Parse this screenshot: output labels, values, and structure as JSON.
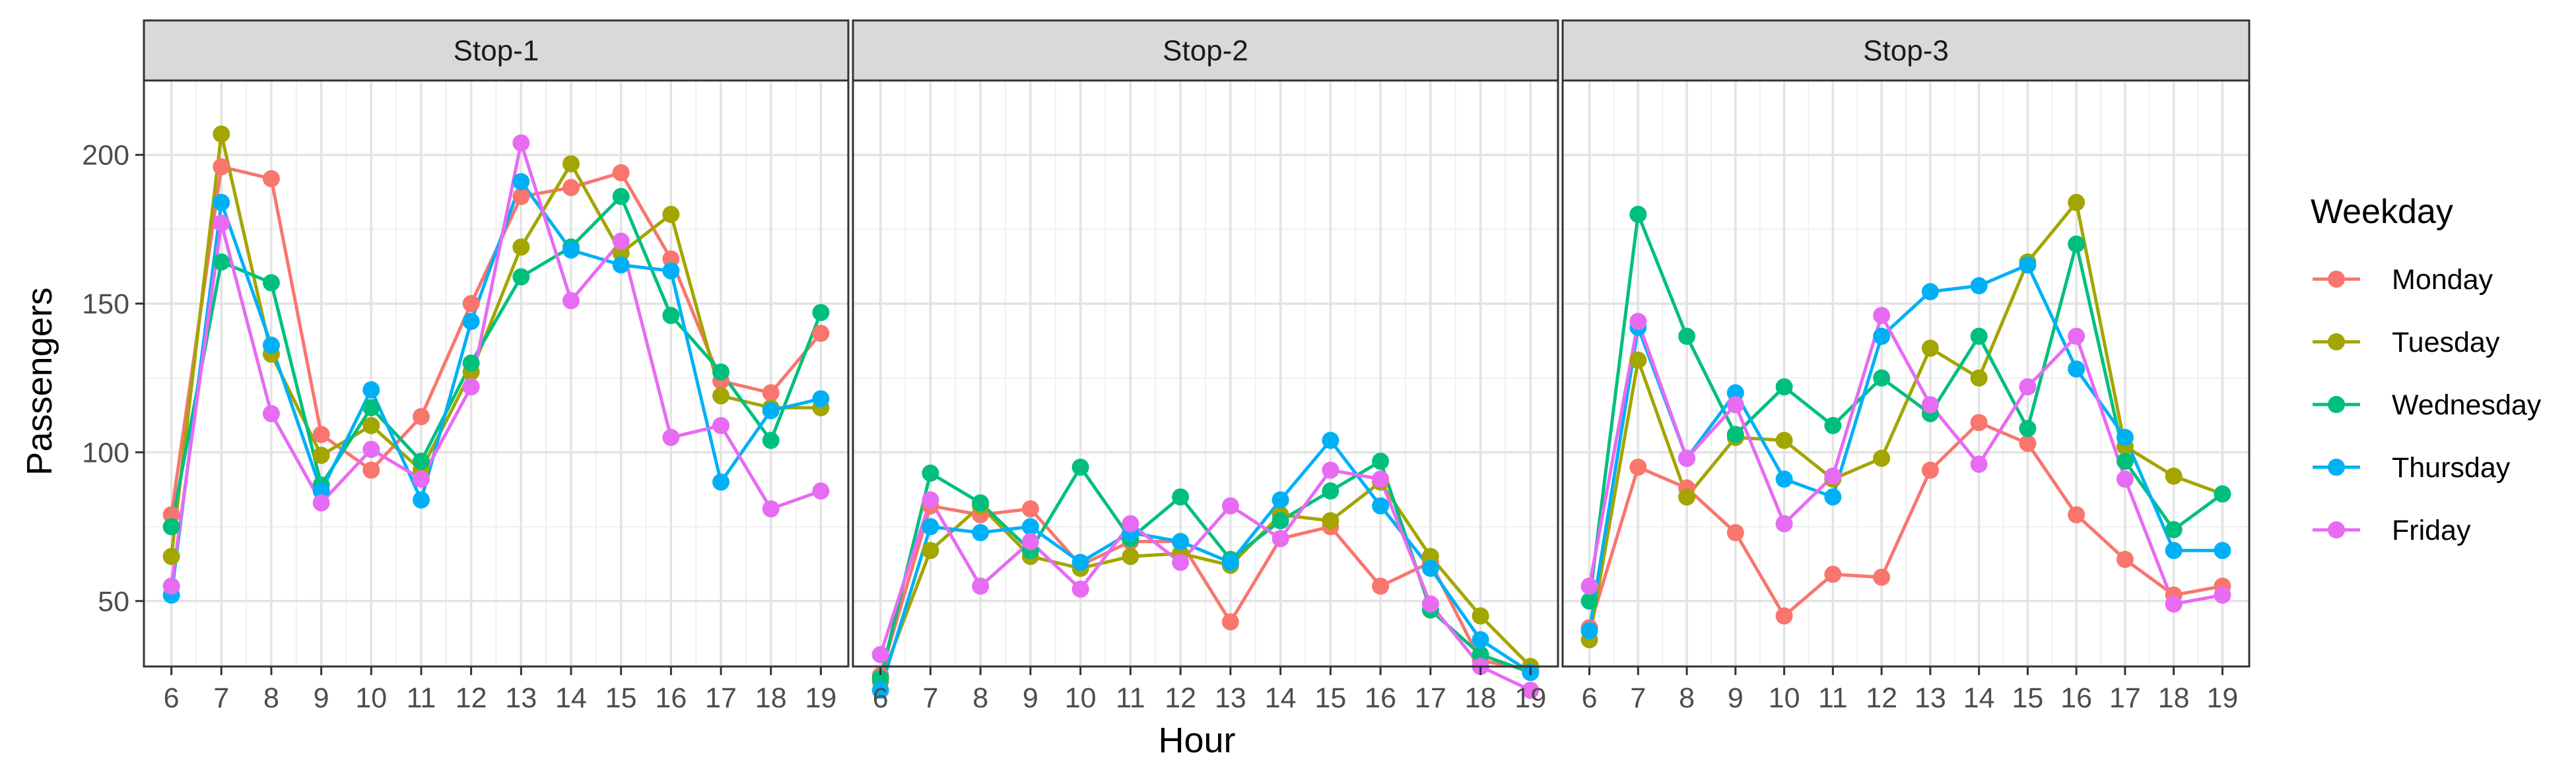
{
  "chart_data": {
    "type": "line",
    "facets": [
      "Stop-1",
      "Stop-2",
      "Stop-3"
    ],
    "xlabel": "Hour",
    "ylabel": "Passengers",
    "x": [
      6,
      7,
      8,
      9,
      10,
      11,
      12,
      13,
      14,
      15,
      16,
      17,
      18,
      19
    ],
    "xlim": [
      5.45,
      19.55
    ],
    "ylim": [
      28,
      225
    ],
    "yticks": [
      50,
      100,
      150,
      200
    ],
    "grid": true,
    "legend": {
      "title": "Weekday",
      "position": "right",
      "entries": [
        "Monday",
        "Tuesday",
        "Wednesday",
        "Thursday",
        "Friday"
      ]
    },
    "colors": {
      "Monday": "#F8766D",
      "Tuesday": "#A3A500",
      "Wednesday": "#00BF7D",
      "Thursday": "#00B0F6",
      "Friday": "#E76BF3"
    },
    "panels": [
      {
        "facet": "Stop-1",
        "series": [
          {
            "name": "Monday",
            "values": [
              79,
              196,
              192,
              106,
              94,
              112,
              150,
              186,
              189,
              194,
              165,
              124,
              120,
              140
            ]
          },
          {
            "name": "Tuesday",
            "values": [
              65,
              207,
              133,
              99,
              109,
              94,
              127,
              169,
              197,
              167,
              180,
              119,
              115,
              115
            ]
          },
          {
            "name": "Wednesday",
            "values": [
              75,
              164,
              157,
              89,
              115,
              97,
              130,
              159,
              169,
              186,
              146,
              127,
              104,
              147
            ]
          },
          {
            "name": "Thursday",
            "values": [
              52,
              184,
              136,
              87,
              121,
              84,
              144,
              191,
              168,
              163,
              161,
              90,
              114,
              118
            ]
          },
          {
            "name": "Friday",
            "values": [
              55,
              177,
              113,
              83,
              101,
              91,
              122,
              204,
              151,
              171,
              105,
              109,
              81,
              87
            ]
          }
        ]
      },
      {
        "facet": "Stop-2",
        "series": [
          {
            "name": "Monday",
            "values": [
              25,
              82,
              79,
              81,
              62,
              70,
              70,
              43,
              71,
              75,
              55,
              63,
              30,
              27
            ]
          },
          {
            "name": "Tuesday",
            "values": [
              23,
              67,
              82,
              65,
              61,
              65,
              66,
              62,
              79,
              77,
              90,
              65,
              45,
              28
            ]
          },
          {
            "name": "Wednesday",
            "values": [
              24,
              93,
              83,
              67,
              95,
              71,
              85,
              64,
              77,
              87,
              97,
              47,
              32,
              26
            ]
          },
          {
            "name": "Thursday",
            "values": [
              20,
              75,
              73,
              75,
              63,
              73,
              70,
              63,
              84,
              104,
              82,
              61,
              37,
              26
            ]
          },
          {
            "name": "Friday",
            "values": [
              32,
              84,
              55,
              70,
              54,
              76,
              63,
              82,
              71,
              94,
              91,
              49,
              28,
              20
            ]
          }
        ]
      },
      {
        "facet": "Stop-3",
        "series": [
          {
            "name": "Monday",
            "values": [
              41,
              95,
              88,
              73,
              45,
              59,
              58,
              94,
              110,
              103,
              79,
              64,
              52,
              55
            ]
          },
          {
            "name": "Tuesday",
            "values": [
              37,
              131,
              85,
              105,
              104,
              91,
              98,
              135,
              125,
              164,
              184,
              102,
              92,
              86
            ]
          },
          {
            "name": "Wednesday",
            "values": [
              50,
              180,
              139,
              106,
              122,
              109,
              125,
              113,
              139,
              108,
              170,
              97,
              74,
              86
            ]
          },
          {
            "name": "Thursday",
            "values": [
              40,
              142,
              98,
              120,
              91,
              85,
              139,
              154,
              156,
              163,
              128,
              105,
              67,
              67
            ]
          },
          {
            "name": "Friday",
            "values": [
              55,
              144,
              98,
              116,
              76,
              92,
              146,
              116,
              96,
              122,
              139,
              91,
              49,
              52
            ]
          }
        ]
      }
    ]
  }
}
